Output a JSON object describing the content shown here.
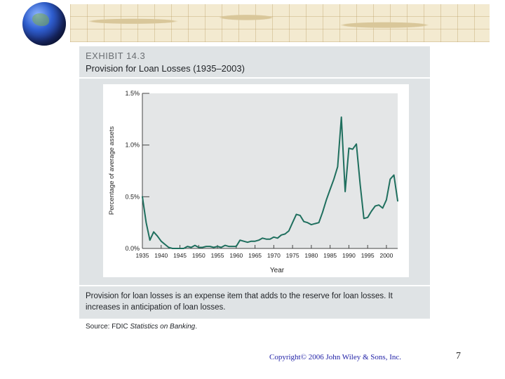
{
  "exhibit": {
    "label": "EXHIBIT 14.3",
    "title": "Provision for Loan Losses (1935–2003)",
    "caption": "Provision for loan losses is an expense item that adds to the reserve for loan losses. It increases in anticipation of loan losses.",
    "source_prefix": "Source: FDIC ",
    "source_title": "Statistics on Banking",
    "source_suffix": "."
  },
  "footer": {
    "copyright": "Copyright© 2006 John Wiley & Sons, Inc.",
    "page_number": "7"
  },
  "colors": {
    "line": "#1f6f5e",
    "plot_bg": "#e4e6e7",
    "panel_bg": "#dfe3e5"
  },
  "chart_data": {
    "type": "line",
    "title": "Provision for Loan Losses (1935–2003)",
    "xlabel": "Year",
    "ylabel": "Percentage of average assets",
    "xlim": [
      1935,
      2003
    ],
    "ylim": [
      0,
      1.5
    ],
    "x_ticks": [
      1935,
      1940,
      1945,
      1950,
      1955,
      1960,
      1965,
      1970,
      1975,
      1980,
      1985,
      1990,
      1995,
      2000
    ],
    "x_tick_labels": [
      "1935",
      "1940",
      "1945",
      "1950",
      "1955",
      "1960",
      "1965",
      "1970",
      "1975",
      "1980",
      "1985",
      "1990",
      "1995",
      "2000"
    ],
    "y_ticks": [
      0,
      0.5,
      1.0,
      1.5
    ],
    "y_tick_labels": [
      "0.0%",
      "0.5%",
      "1.0%",
      "1.5%"
    ],
    "series": [
      {
        "name": "Provision for loan losses",
        "x": [
          1935,
          1936,
          1937,
          1938,
          1939,
          1940,
          1941,
          1942,
          1943,
          1944,
          1945,
          1946,
          1947,
          1948,
          1949,
          1950,
          1951,
          1952,
          1953,
          1954,
          1955,
          1956,
          1957,
          1958,
          1959,
          1960,
          1961,
          1962,
          1963,
          1964,
          1965,
          1966,
          1967,
          1968,
          1969,
          1970,
          1971,
          1972,
          1973,
          1974,
          1975,
          1976,
          1977,
          1978,
          1979,
          1980,
          1981,
          1982,
          1983,
          1984,
          1985,
          1986,
          1987,
          1988,
          1989,
          1990,
          1991,
          1992,
          1993,
          1994,
          1995,
          1996,
          1997,
          1998,
          1999,
          2000,
          2001,
          2002,
          2003
        ],
        "y": [
          0.5,
          0.25,
          0.08,
          0.16,
          0.12,
          0.07,
          0.04,
          0.01,
          0.0,
          0.0,
          0.0,
          0.0,
          0.02,
          0.01,
          0.03,
          0.01,
          0.01,
          0.02,
          0.02,
          0.01,
          0.02,
          0.01,
          0.03,
          0.02,
          0.02,
          0.02,
          0.08,
          0.07,
          0.06,
          0.07,
          0.07,
          0.08,
          0.1,
          0.09,
          0.09,
          0.11,
          0.1,
          0.13,
          0.14,
          0.17,
          0.25,
          0.33,
          0.32,
          0.26,
          0.25,
          0.23,
          0.24,
          0.25,
          0.35,
          0.47,
          0.57,
          0.67,
          0.79,
          1.27,
          0.55,
          0.97,
          0.96,
          1.01,
          0.62,
          0.29,
          0.3,
          0.36,
          0.41,
          0.42,
          0.39,
          0.47,
          0.67,
          0.71,
          0.46
        ]
      }
    ]
  }
}
